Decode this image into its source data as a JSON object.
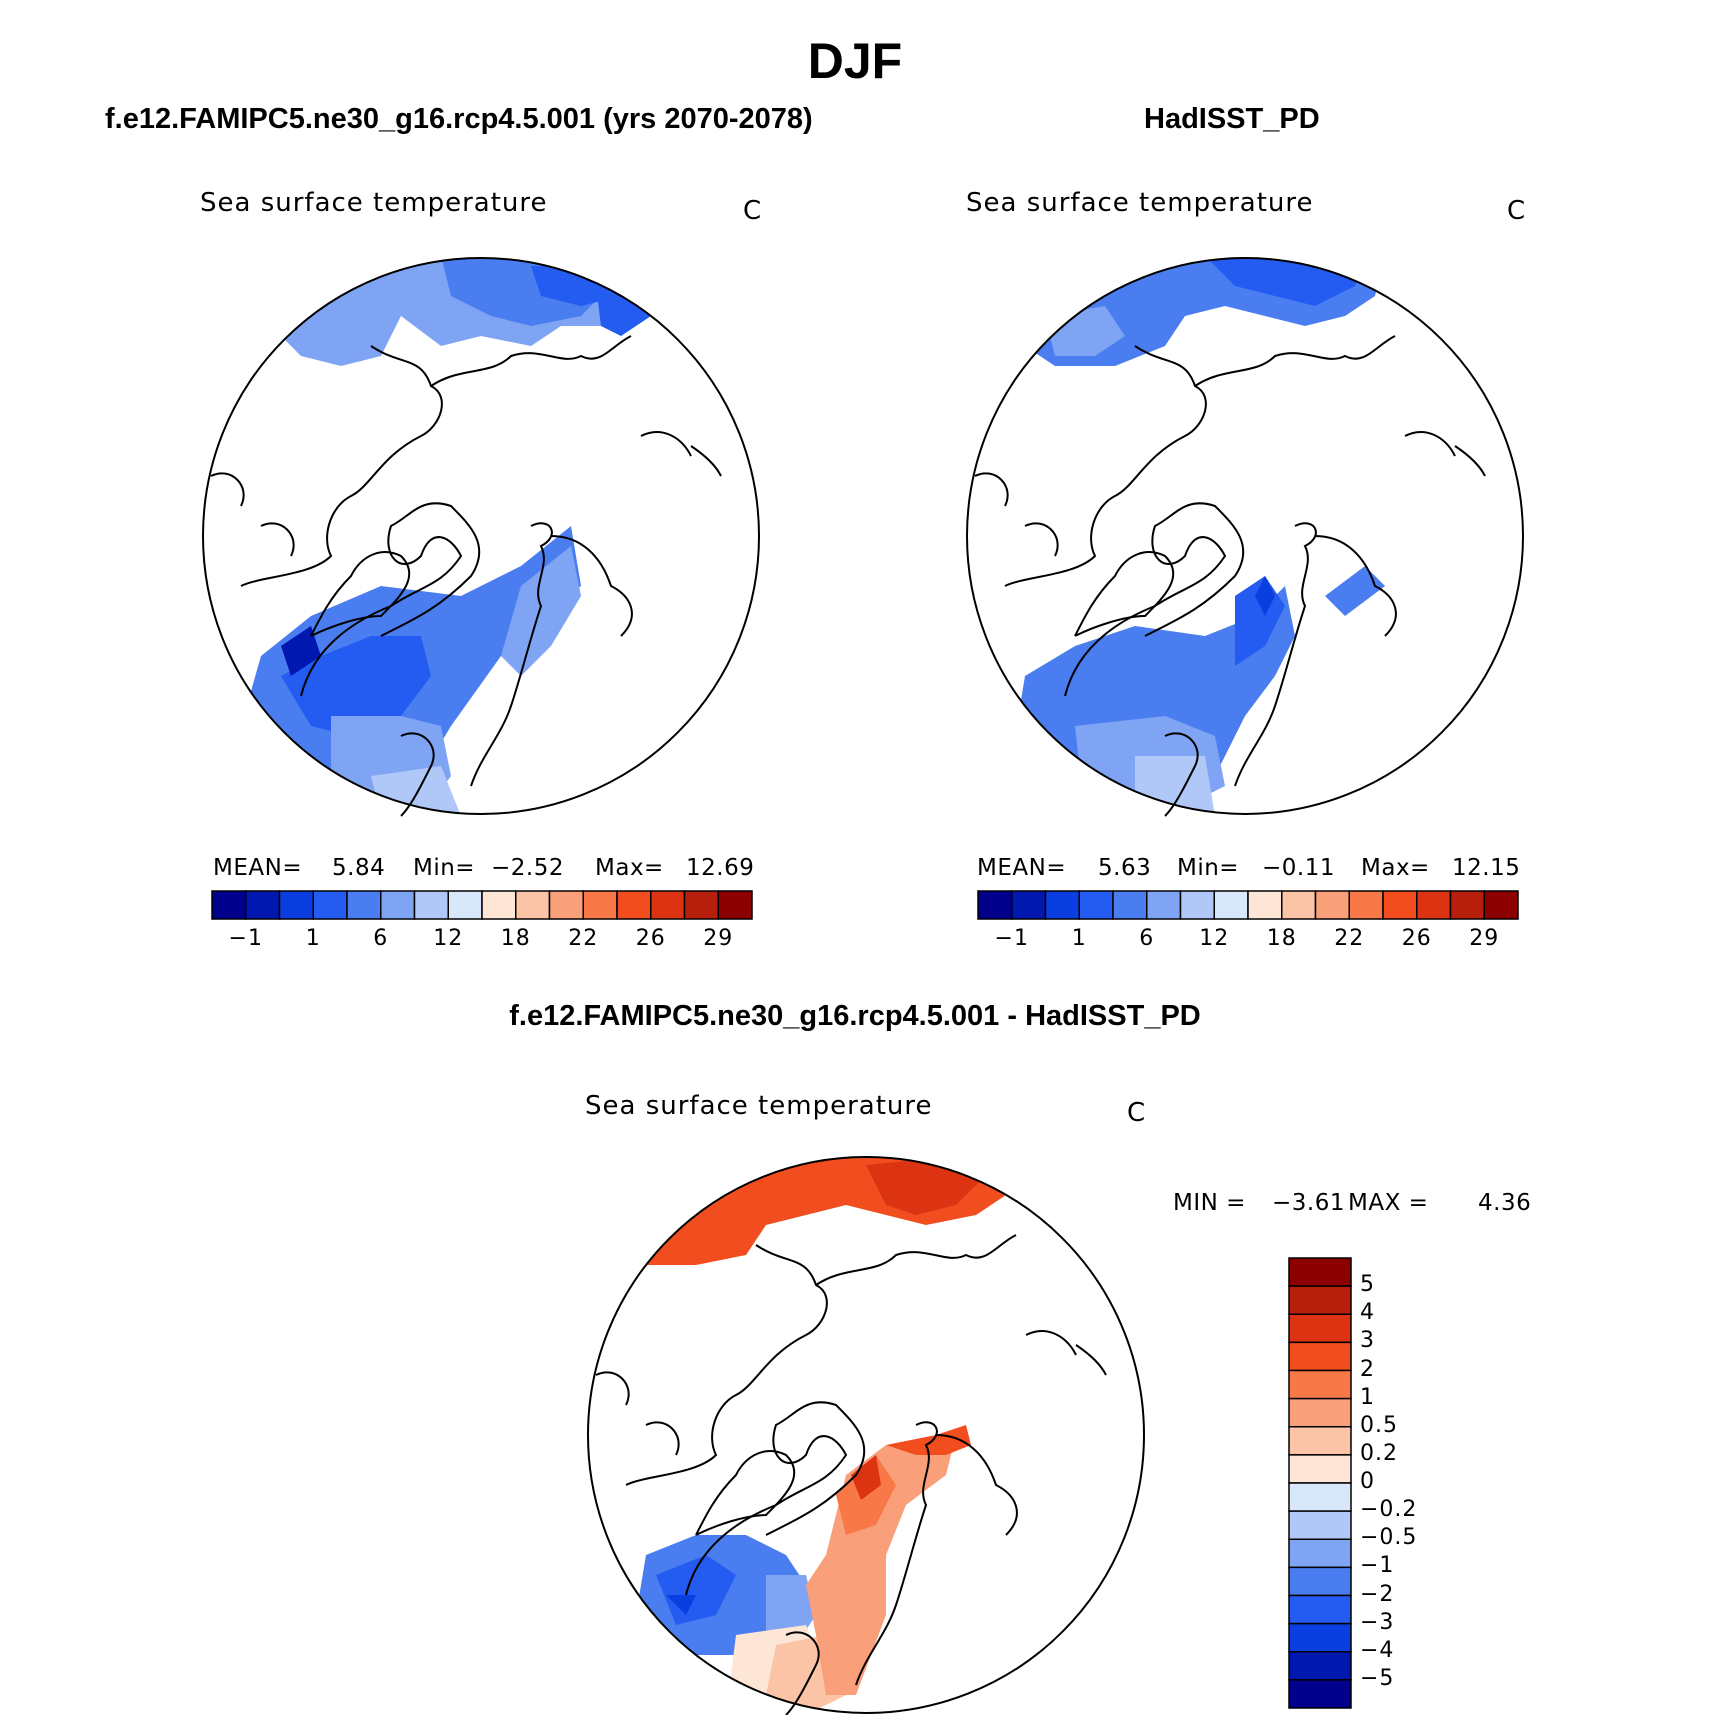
{
  "title": "DJF",
  "panels": [
    {
      "case_title": "f.e12.FAMIPC5.ne30_g16.rcp4.5.001 (yrs 2070-2078)",
      "variable": "Sea surface temperature",
      "units": "C",
      "mean_label": "MEAN=",
      "mean_value": "5.84",
      "min_label": "Min=",
      "min_value": "−2.52",
      "max_label": "Max=",
      "max_value": "12.69"
    },
    {
      "case_title": "HadISST_PD",
      "variable": "Sea surface temperature",
      "units": "C",
      "mean_label": "MEAN=",
      "mean_value": "5.63",
      "min_label": "Min=",
      "min_value": "−0.11",
      "max_label": "Max=",
      "max_value": "12.15"
    }
  ],
  "abs_colorbar": {
    "tick_labels": [
      "−1",
      "1",
      "6",
      "12",
      "18",
      "22",
      "26",
      "29"
    ],
    "colors": [
      "#00008c",
      "#0018b0",
      "#0a3ee0",
      "#245bf0",
      "#4a7ef0",
      "#7fa4f4",
      "#b0c8f8",
      "#d8e8fa",
      "#fde6d6",
      "#fbc4a6",
      "#f9a07a",
      "#f87848",
      "#f24d1e",
      "#dc3412",
      "#b81e0c",
      "#8c0000"
    ]
  },
  "diff_panel": {
    "title": "f.e12.FAMIPC5.ne30_g16.rcp4.5.001 - HadISST_PD",
    "variable": "Sea surface temperature",
    "units": "C",
    "min_label": "MIN =",
    "min_value": "−3.61",
    "max_label": "MAX =",
    "max_value": "4.36"
  },
  "diff_colorbar": {
    "tick_labels": [
      "5",
      "4",
      "3",
      "2",
      "1",
      "0.5",
      "0.2",
      "0",
      "−0.2",
      "−0.5",
      "−1",
      "−2",
      "−3",
      "−4",
      "−5"
    ],
    "colors": [
      "#8c0000",
      "#b81e0c",
      "#dc3412",
      "#f24d1e",
      "#f87848",
      "#f9a07a",
      "#fbc4a6",
      "#fde6d6",
      "#d8e8fa",
      "#b0c8f8",
      "#7fa4f4",
      "#4a7ef0",
      "#245bf0",
      "#0a3ee0",
      "#0018b0",
      "#00008c"
    ]
  }
}
